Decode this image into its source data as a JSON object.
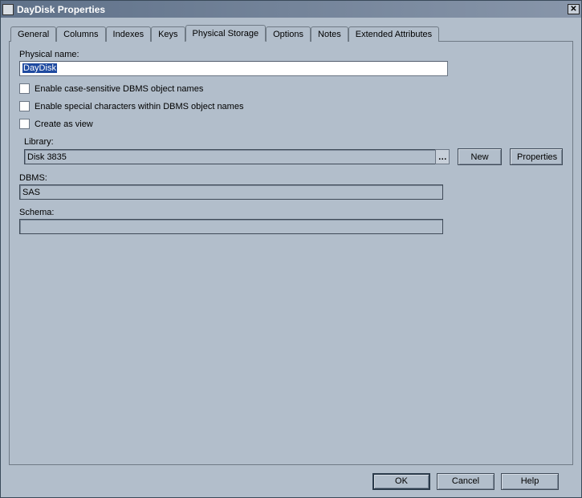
{
  "window": {
    "title": "DayDisk Properties"
  },
  "tabs": [
    {
      "label": "General"
    },
    {
      "label": "Columns"
    },
    {
      "label": "Indexes"
    },
    {
      "label": "Keys"
    },
    {
      "label": "Physical Storage"
    },
    {
      "label": "Options"
    },
    {
      "label": "Notes"
    },
    {
      "label": "Extended Attributes"
    }
  ],
  "active_tab_index": 4,
  "form": {
    "physical_name_label": "Physical name:",
    "physical_name_value": "DayDisk",
    "cb_case_sensitive": "Enable case-sensitive DBMS object names",
    "cb_special_chars": "Enable special characters within DBMS object names",
    "cb_create_as_view": "Create as view",
    "library_label": "Library:",
    "library_value": "Disk 3835",
    "new_btn": "New",
    "properties_btn": "Properties",
    "dbms_label": "DBMS:",
    "dbms_value": "SAS",
    "schema_label": "Schema:",
    "schema_value": ""
  },
  "footer": {
    "ok": "OK",
    "cancel": "Cancel",
    "help": "Help"
  },
  "colors": {
    "bg": "#b2becb",
    "titlebar_start": "#5f7189",
    "titlebar_end": "#8896aa",
    "border": "#6f7a85",
    "selection": "#1f4aa0"
  }
}
